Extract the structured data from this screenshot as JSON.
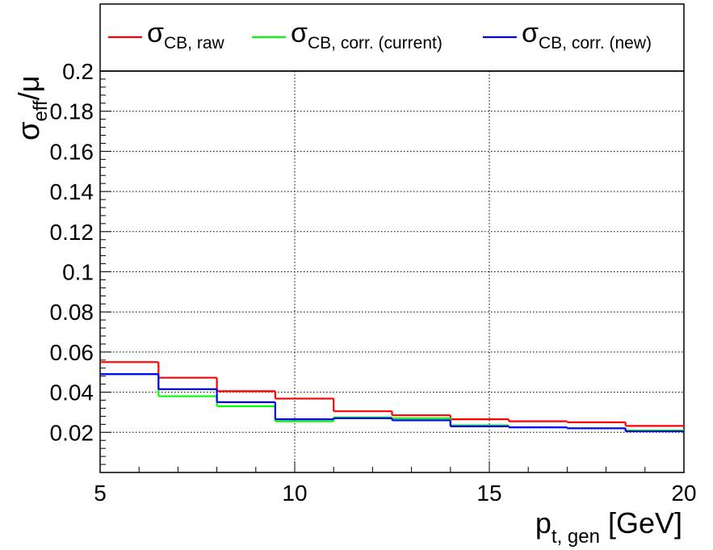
{
  "chart_data": {
    "type": "line",
    "step": true,
    "xlabel": {
      "main": "p",
      "sub": "t, gen",
      "unit": " [GeV]"
    },
    "ylabel": {
      "main": "σ",
      "sub": "eff",
      "rest": "/μ"
    },
    "xlim": [
      5,
      20
    ],
    "ylim": [
      0,
      0.2
    ],
    "grid": true,
    "legend_position": "top",
    "x_ticks": [
      "5",
      "10",
      "15",
      "20"
    ],
    "y_ticks": [
      "0.02",
      "0.04",
      "0.06",
      "0.08",
      "0.1",
      "0.12",
      "0.14",
      "0.16",
      "0.18",
      "0.2"
    ],
    "bin_edges": [
      5,
      6.5,
      8,
      9.5,
      11,
      12.5,
      14,
      15.5,
      17,
      18.5,
      20
    ],
    "series": [
      {
        "name": "σ",
        "sub": "CB, raw",
        "color": "#ff0000",
        "values": [
          0.055,
          0.0472,
          0.0405,
          0.0368,
          0.0305,
          0.0285,
          0.0265,
          0.0255,
          0.025,
          0.0232
        ]
      },
      {
        "name": "σ",
        "sub": "CB, corr. (current)",
        "color": "#00ff00",
        "values": [
          0.049,
          0.038,
          0.033,
          0.0255,
          0.0275,
          0.027,
          0.0235,
          0.0225,
          0.022,
          0.021
        ]
      },
      {
        "name": "σ",
        "sub": "CB, corr. (new)",
        "color": "#0000ff",
        "values": [
          0.049,
          0.0415,
          0.035,
          0.0265,
          0.027,
          0.026,
          0.023,
          0.0225,
          0.022,
          0.0205
        ]
      }
    ]
  }
}
